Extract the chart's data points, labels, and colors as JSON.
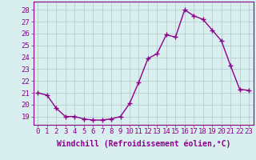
{
  "x": [
    0,
    1,
    2,
    3,
    4,
    5,
    6,
    7,
    8,
    9,
    10,
    11,
    12,
    13,
    14,
    15,
    16,
    17,
    18,
    19,
    20,
    21,
    22,
    23
  ],
  "y": [
    21.0,
    20.8,
    19.7,
    19.0,
    19.0,
    18.8,
    18.7,
    18.7,
    18.8,
    19.0,
    20.1,
    21.9,
    23.9,
    24.3,
    25.9,
    25.7,
    28.0,
    27.5,
    27.2,
    26.3,
    25.4,
    23.3,
    21.3,
    21.2
  ],
  "line_color": "#8B008B",
  "marker": "+",
  "marker_size": 4,
  "linewidth": 1.0,
  "xlabel": "Windchill (Refroidissement éolien,°C)",
  "xlabel_fontsize": 7,
  "xtick_labels": [
    "0",
    "1",
    "2",
    "3",
    "4",
    "5",
    "6",
    "7",
    "8",
    "9",
    "10",
    "11",
    "12",
    "13",
    "14",
    "15",
    "16",
    "17",
    "18",
    "19",
    "20",
    "21",
    "22",
    "23"
  ],
  "ytick_values": [
    19,
    20,
    21,
    22,
    23,
    24,
    25,
    26,
    27,
    28
  ],
  "ylim": [
    18.3,
    28.7
  ],
  "xlim": [
    -0.5,
    23.5
  ],
  "grid_color": "#b0c8c8",
  "bg_color": "#d9eeee",
  "tick_fontsize": 6.5
}
